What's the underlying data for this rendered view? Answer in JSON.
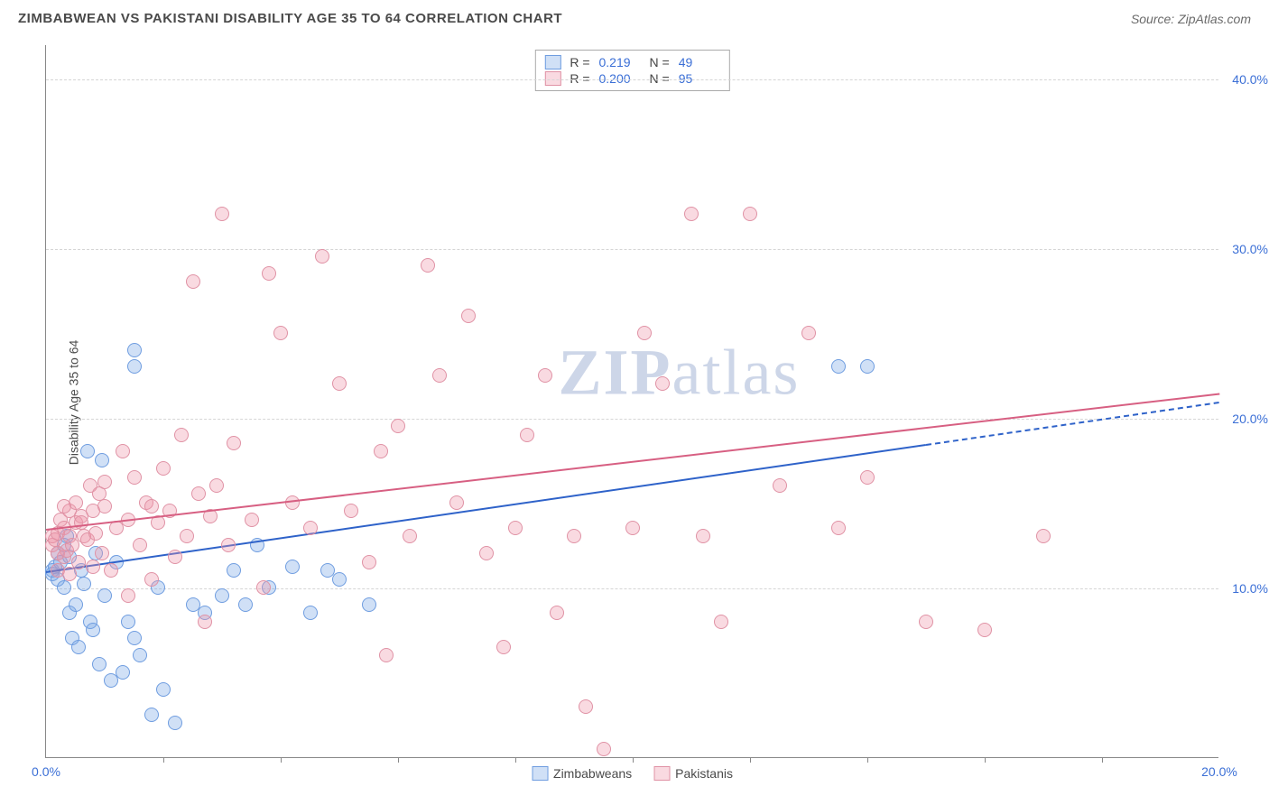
{
  "title": "ZIMBABWEAN VS PAKISTANI DISABILITY AGE 35 TO 64 CORRELATION CHART",
  "source": "Source: ZipAtlas.com",
  "ylabel": "Disability Age 35 to 64",
  "watermark_a": "ZIP",
  "watermark_b": "atlas",
  "chart": {
    "type": "scatter",
    "xlim": [
      0,
      20
    ],
    "ylim": [
      0,
      42
    ],
    "xticks": [
      0,
      20
    ],
    "xtick_labels": [
      "0.0%",
      "20.0%"
    ],
    "xtick_minor": [
      2,
      4,
      6,
      8,
      10,
      12,
      14,
      16,
      18
    ],
    "yticks": [
      10,
      20,
      30,
      40
    ],
    "ytick_labels": [
      "10.0%",
      "20.0%",
      "30.0%",
      "40.0%"
    ],
    "grid_color": "#d5d5d5",
    "background": "#ffffff",
    "marker_radius": 8,
    "marker_stroke_width": 1.5,
    "series": [
      {
        "name": "Zimbabweans",
        "fill": "rgba(120,165,228,0.35)",
        "stroke": "#6f9de0",
        "r": 0.219,
        "n": 49,
        "trend": {
          "x1": 0,
          "y1": 11,
          "x2": 20,
          "y2": 21,
          "color": "#2e62c9",
          "dash_from_x": 15
        },
        "points": [
          [
            0.1,
            11
          ],
          [
            0.1,
            10.8
          ],
          [
            0.15,
            11.2
          ],
          [
            0.2,
            12
          ],
          [
            0.2,
            10.5
          ],
          [
            0.25,
            11.5
          ],
          [
            0.3,
            10
          ],
          [
            0.3,
            12.5
          ],
          [
            0.35,
            13
          ],
          [
            0.4,
            11.8
          ],
          [
            0.4,
            8.5
          ],
          [
            0.45,
            7
          ],
          [
            0.5,
            9
          ],
          [
            0.55,
            6.5
          ],
          [
            0.6,
            11
          ],
          [
            0.65,
            10.2
          ],
          [
            0.7,
            18
          ],
          [
            0.75,
            8
          ],
          [
            0.8,
            7.5
          ],
          [
            0.85,
            12
          ],
          [
            0.9,
            5.5
          ],
          [
            0.95,
            17.5
          ],
          [
            1,
            9.5
          ],
          [
            1.1,
            4.5
          ],
          [
            1.2,
            11.5
          ],
          [
            1.3,
            5
          ],
          [
            1.4,
            8
          ],
          [
            1.5,
            7
          ],
          [
            1.5,
            24
          ],
          [
            1.5,
            23
          ],
          [
            1.6,
            6
          ],
          [
            1.8,
            2.5
          ],
          [
            1.9,
            10
          ],
          [
            2,
            4
          ],
          [
            2.2,
            2
          ],
          [
            2.5,
            9
          ],
          [
            2.7,
            8.5
          ],
          [
            3,
            9.5
          ],
          [
            3.2,
            11
          ],
          [
            3.4,
            9
          ],
          [
            3.6,
            12.5
          ],
          [
            3.8,
            10
          ],
          [
            4.2,
            11.2
          ],
          [
            4.5,
            8.5
          ],
          [
            4.8,
            11
          ],
          [
            5,
            10.5
          ],
          [
            5.5,
            9
          ],
          [
            13.5,
            23
          ],
          [
            14,
            23
          ]
        ]
      },
      {
        "name": "Pakistanis",
        "fill": "rgba(238,150,170,0.35)",
        "stroke": "#e092a5",
        "r": 0.2,
        "n": 95,
        "trend": {
          "x1": 0,
          "y1": 13.5,
          "x2": 20,
          "y2": 21.5,
          "color": "#d75f82",
          "dash_from_x": null
        },
        "points": [
          [
            0.1,
            12.5
          ],
          [
            0.1,
            13
          ],
          [
            0.15,
            12.8
          ],
          [
            0.2,
            13.2
          ],
          [
            0.2,
            12
          ],
          [
            0.25,
            14
          ],
          [
            0.3,
            11.8
          ],
          [
            0.3,
            13.5
          ],
          [
            0.35,
            12.2
          ],
          [
            0.4,
            14.5
          ],
          [
            0.4,
            13
          ],
          [
            0.45,
            12.5
          ],
          [
            0.5,
            15
          ],
          [
            0.5,
            13.8
          ],
          [
            0.55,
            11.5
          ],
          [
            0.6,
            14.2
          ],
          [
            0.65,
            13
          ],
          [
            0.7,
            12.8
          ],
          [
            0.75,
            16
          ],
          [
            0.8,
            14.5
          ],
          [
            0.85,
            13.2
          ],
          [
            0.9,
            15.5
          ],
          [
            0.95,
            12
          ],
          [
            1,
            14.8
          ],
          [
            1.1,
            11
          ],
          [
            1.2,
            13.5
          ],
          [
            1.3,
            18
          ],
          [
            1.4,
            14
          ],
          [
            1.5,
            16.5
          ],
          [
            1.6,
            12.5
          ],
          [
            1.7,
            15
          ],
          [
            1.8,
            10.5
          ],
          [
            1.9,
            13.8
          ],
          [
            2,
            17
          ],
          [
            2.1,
            14.5
          ],
          [
            2.2,
            11.8
          ],
          [
            2.3,
            19
          ],
          [
            2.4,
            13
          ],
          [
            2.5,
            28
          ],
          [
            2.6,
            15.5
          ],
          [
            2.7,
            8
          ],
          [
            2.8,
            14.2
          ],
          [
            2.9,
            16
          ],
          [
            3,
            32
          ],
          [
            3.1,
            12.5
          ],
          [
            3.2,
            18.5
          ],
          [
            3.5,
            14
          ],
          [
            3.7,
            10
          ],
          [
            3.8,
            28.5
          ],
          [
            4,
            25
          ],
          [
            4.2,
            15
          ],
          [
            4.5,
            13.5
          ],
          [
            4.7,
            29.5
          ],
          [
            5,
            22
          ],
          [
            5.2,
            14.5
          ],
          [
            5.5,
            11.5
          ],
          [
            5.7,
            18
          ],
          [
            5.8,
            6
          ],
          [
            6,
            19.5
          ],
          [
            6.2,
            13
          ],
          [
            6.5,
            29
          ],
          [
            6.7,
            22.5
          ],
          [
            7,
            15
          ],
          [
            7.2,
            26
          ],
          [
            7.5,
            12
          ],
          [
            7.8,
            6.5
          ],
          [
            8,
            13.5
          ],
          [
            8.2,
            19
          ],
          [
            8.5,
            22.5
          ],
          [
            8.7,
            8.5
          ],
          [
            9,
            13
          ],
          [
            9.2,
            3
          ],
          [
            9.5,
            0.5
          ],
          [
            10,
            13.5
          ],
          [
            10.2,
            25
          ],
          [
            10.5,
            22
          ],
          [
            11,
            32
          ],
          [
            11.2,
            13
          ],
          [
            11.5,
            8
          ],
          [
            12,
            32
          ],
          [
            12.5,
            16
          ],
          [
            13,
            25
          ],
          [
            13.5,
            13.5
          ],
          [
            14,
            16.5
          ],
          [
            15,
            8
          ],
          [
            16,
            7.5
          ],
          [
            17,
            13
          ],
          [
            0.2,
            11
          ],
          [
            0.3,
            14.8
          ],
          [
            0.4,
            10.8
          ],
          [
            0.6,
            13.8
          ],
          [
            0.8,
            11.2
          ],
          [
            1,
            16.2
          ],
          [
            1.4,
            9.5
          ],
          [
            1.8,
            14.8
          ]
        ]
      }
    ]
  },
  "stats_labels": {
    "r": "R  =",
    "n": "N  ="
  },
  "legend": [
    "Zimbabweans",
    "Pakistanis"
  ]
}
